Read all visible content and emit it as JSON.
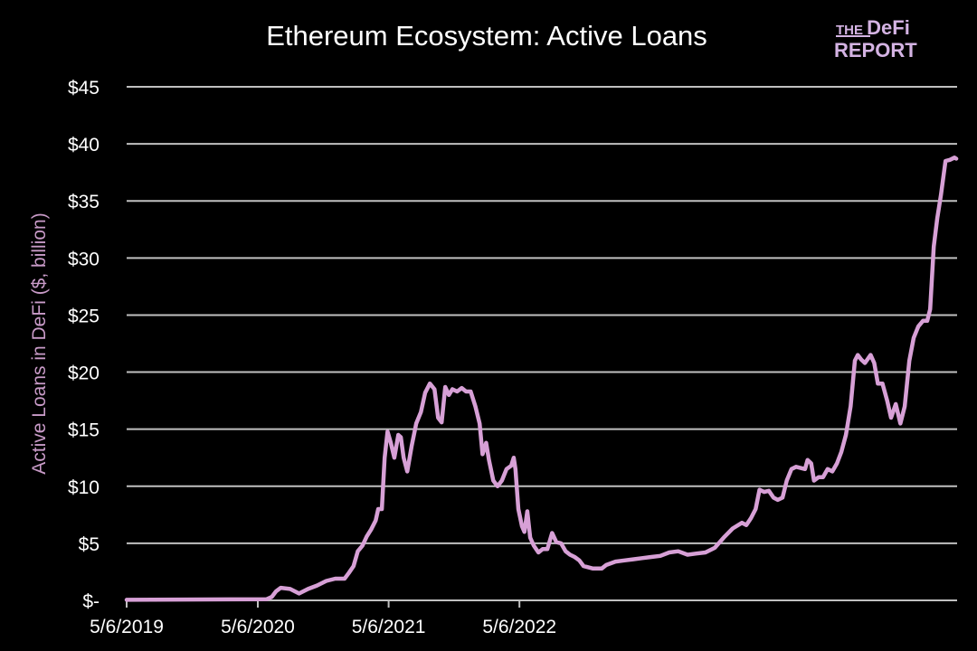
{
  "logo": {
    "line1": "THE DeFi",
    "line2": "REPORT"
  },
  "chart_data": {
    "type": "line",
    "title": "Ethereum Ecosystem: Active Loans",
    "xlabel": "",
    "ylabel": "Active Loans in DeFi ($, billion)",
    "ylim": [
      0,
      45
    ],
    "yticks": [
      0,
      5,
      10,
      15,
      20,
      25,
      30,
      35,
      40,
      45
    ],
    "ytick_labels": [
      "$-",
      "$5",
      "$10",
      "$15",
      "$20",
      "$25",
      "$30",
      "$35",
      "$40",
      "$45"
    ],
    "xticks": [
      "2019-05-06",
      "2020-05-06",
      "2021-05-06",
      "2022-05-06"
    ],
    "xtick_labels": [
      "5/6/2019",
      "5/6/2020",
      "5/6/2021",
      "5/6/2022"
    ],
    "grid": true,
    "colors": {
      "line": "#d7a0d6",
      "grid": "#c0c0c0",
      "text": "#ffffff",
      "ylabel": "#c99bc8",
      "background": "#000000"
    },
    "series": [
      {
        "x": [
          "2019-05-06",
          "2020-05-31",
          "2020-06-14",
          "2020-06-26",
          "2020-07-09",
          "2020-08-04",
          "2020-08-29",
          "2020-09-23",
          "2020-10-18",
          "2020-11-13",
          "2020-12-08",
          "2021-01-03",
          "2021-01-15",
          "2021-01-28",
          "2021-02-09",
          "2021-02-22",
          "2021-03-06",
          "2021-03-18",
          "2021-03-31",
          "2021-04-07",
          "2021-04-17",
          "2021-04-25",
          "2021-05-03",
          "2021-05-12",
          "2021-05-22",
          "2021-06-02",
          "2021-06-09",
          "2021-06-17",
          "2021-06-27",
          "2021-07-09",
          "2021-07-22",
          "2021-08-04",
          "2021-08-16",
          "2021-08-29",
          "2021-09-11",
          "2021-09-21",
          "2021-10-01",
          "2021-10-11",
          "2021-10-21",
          "2021-10-31",
          "2021-11-13",
          "2021-11-26",
          "2021-12-08",
          "2021-12-21",
          "2022-01-03",
          "2022-01-15",
          "2022-01-23",
          "2022-02-02",
          "2022-02-10",
          "2022-02-22",
          "2022-03-06",
          "2022-03-18",
          "2022-03-31",
          "2022-04-13",
          "2022-04-20",
          "2022-04-25",
          "2022-05-03",
          "2022-05-13",
          "2022-05-20",
          "2022-05-28",
          "2022-06-05",
          "2022-06-15",
          "2022-06-28",
          "2022-07-10",
          "2022-07-23",
          "2022-08-05",
          "2022-08-17",
          "2022-08-30",
          "2022-09-12",
          "2022-09-24",
          "2022-10-07",
          "2022-10-20",
          "2022-11-01",
          "2022-11-26",
          "2022-12-22",
          "2023-01-03",
          "2023-01-29",
          "2023-02-23",
          "2023-03-19",
          "2023-04-13",
          "2023-05-09",
          "2023-06-03",
          "2023-06-28",
          "2023-07-23",
          "2023-08-18",
          "2023-09-12",
          "2023-10-07",
          "2023-11-02",
          "2023-11-27",
          "2023-12-22",
          "2024-01-17",
          "2024-01-29",
          "2024-02-11",
          "2024-02-24",
          "2024-03-06",
          "2024-03-19",
          "2024-04-01",
          "2024-04-14",
          "2024-04-26",
          "2024-05-09",
          "2024-05-21",
          "2024-06-03",
          "2024-06-16",
          "2024-07-11",
          "2024-07-18",
          "2024-07-28",
          "2024-08-05",
          "2024-08-18",
          "2024-08-30",
          "2024-09-12",
          "2024-09-25",
          "2024-10-08",
          "2024-10-20",
          "2024-11-02",
          "2024-11-15",
          "2024-11-27",
          "2024-12-05",
          "2024-12-15",
          "2024-12-25",
          "2025-01-10",
          "2025-01-20",
          "2025-01-30",
          "2025-02-12",
          "2025-02-25",
          "2025-03-08",
          "2025-03-21",
          "2025-04-03",
          "2025-04-15",
          "2025-04-28",
          "2025-05-10",
          "2025-05-23",
          "2025-06-05",
          "2025-06-17",
          "2025-06-25",
          "2025-07-05",
          "2025-07-15",
          "2025-07-25",
          "2025-08-07",
          "2025-08-19",
          "2025-09-01",
          "2025-09-06"
        ],
        "y": [
          0.05,
          0.1,
          0.3,
          0.8,
          1.1,
          1.0,
          0.6,
          1.0,
          1.3,
          1.7,
          1.9,
          1.9,
          2.4,
          3.0,
          4.3,
          4.8,
          5.6,
          6.2,
          7.0,
          8.0,
          8.0,
          12.5,
          14.8,
          13.8,
          12.5,
          14.5,
          14.3,
          12.5,
          11.3,
          13.5,
          15.5,
          16.5,
          18.2,
          19.0,
          18.5,
          16.0,
          15.6,
          18.7,
          18.0,
          18.5,
          18.3,
          18.6,
          18.3,
          18.3,
          17.0,
          15.5,
          12.8,
          13.8,
          12.3,
          10.5,
          10.0,
          10.5,
          11.5,
          11.8,
          12.5,
          11.5,
          8.0,
          6.5,
          6.0,
          7.8,
          5.5,
          4.8,
          4.2,
          4.5,
          4.5,
          5.9,
          5.1,
          5.0,
          4.3,
          4.0,
          3.8,
          3.5,
          3.0,
          2.8,
          2.8,
          3.1,
          3.4,
          3.5,
          3.6,
          3.7,
          3.8,
          3.9,
          4.2,
          4.3,
          4.0,
          4.1,
          4.2,
          4.6,
          5.5,
          6.3,
          6.8,
          6.6,
          7.2,
          8.0,
          9.7,
          9.5,
          9.6,
          9.0,
          8.8,
          9.0,
          10.5,
          11.5,
          11.7,
          11.5,
          12.3,
          12.0,
          10.5,
          10.8,
          10.8,
          11.5,
          11.3,
          12.0,
          13.0,
          14.5,
          17.0,
          21.0,
          21.5,
          21.1,
          20.8,
          21.5,
          20.8,
          19.0,
          19.0,
          17.5,
          16.0,
          17.2,
          15.5,
          17.0,
          21.0,
          23.0,
          24.0,
          24.5,
          24.5,
          25.5,
          31.0,
          33.5,
          35.5,
          38.5,
          38.6,
          38.8,
          38.7
        ]
      }
    ]
  }
}
